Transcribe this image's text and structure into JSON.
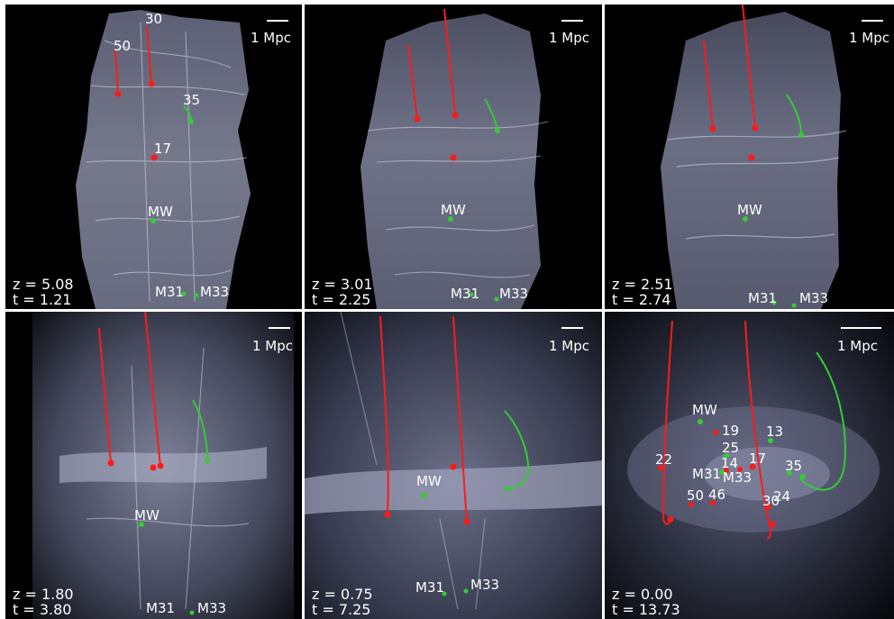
{
  "figure": {
    "scale_label": "1 Mpc",
    "colors": {
      "main": "#ff1a1a",
      "local_group": "#33cc33",
      "filament": "#c8ccdd",
      "background": "#000000"
    },
    "panels": [
      {
        "z_text": "z = 5.08",
        "t_text": "t = 1.21",
        "labels": {
          "p50": "50",
          "p30": "30",
          "p35": "35",
          "p17": "17",
          "mw": "MW",
          "m31": "M31",
          "m33": "M33"
        }
      },
      {
        "z_text": "z = 3.01",
        "t_text": "t = 2.25",
        "labels": {
          "mw": "MW",
          "m31": "M31",
          "m33": "M33"
        }
      },
      {
        "z_text": "z = 2.51",
        "t_text": "t = 2.74",
        "labels": {
          "mw": "MW",
          "m31": "M31",
          "m33": "M33"
        }
      },
      {
        "z_text": "z = 1.80",
        "t_text": "t = 3.80",
        "labels": {
          "mw": "MW",
          "m31": "M31",
          "m33": "M33"
        }
      },
      {
        "z_text": "z = 0.75",
        "t_text": "t = 7.25",
        "labels": {
          "mw": "MW",
          "m31": "M31",
          "m33": "M33"
        }
      },
      {
        "z_text": "z = 0.00",
        "t_text": "t = 13.73",
        "labels": {
          "mw": "MW",
          "p19": "19",
          "p13": "13",
          "p25": "25",
          "p14": "14",
          "m31": "M31",
          "m33": "M33",
          "p17": "17",
          "p22": "22",
          "p35": "35",
          "p50": "50",
          "p46": "46",
          "p30": "30",
          "p24": "24"
        }
      }
    ]
  }
}
